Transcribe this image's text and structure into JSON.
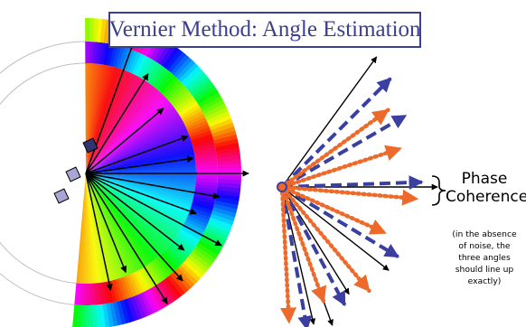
{
  "title": "Vernier Method: Angle Estimation",
  "annotation": {
    "label_line1": "Phase",
    "label_line2": "Coherence",
    "note_line1": "(in the absence",
    "note_line2": "of noise, the",
    "note_line3": "three angles",
    "note_line4": "should line up",
    "note_line5": "exactly)"
  },
  "colors": {
    "title": "#3a3f8f",
    "arrow_solid": "#000000",
    "arrow_blue_dashed": "#3a3fa0",
    "arrow_orange_dotted": "#ee6a2a",
    "square_dark": "#2e3570",
    "square_light": "#a9a6d6"
  }
}
